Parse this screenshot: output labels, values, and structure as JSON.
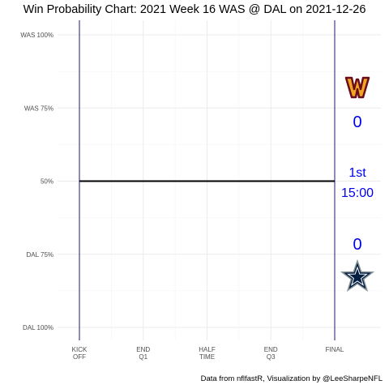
{
  "chart_data": {
    "type": "line",
    "title": "Win Probability Chart: 2021 Week 16 WAS @ DAL on 2021-12-26",
    "xlabel": "",
    "ylabel": "",
    "x_ticks": [
      {
        "pos": 0,
        "label": [
          "KICK",
          "OFF"
        ]
      },
      {
        "pos": 1,
        "label": [
          "END",
          "Q1"
        ]
      },
      {
        "pos": 2,
        "label": [
          "HALF",
          "TIME"
        ]
      },
      {
        "pos": 3,
        "label": [
          "END",
          "Q3"
        ]
      },
      {
        "pos": 4,
        "label": [
          "FINAL"
        ]
      }
    ],
    "xlim": [
      0,
      4
    ],
    "y_ticks": [
      {
        "value": 1.0,
        "label": "WAS 100%"
      },
      {
        "value": 0.75,
        "label": "WAS 75%"
      },
      {
        "value": 0.5,
        "label": "50%"
      },
      {
        "value": 0.25,
        "label": "DAL 75%"
      },
      {
        "value": 0.0,
        "label": "DAL 100%"
      }
    ],
    "ylim": [
      0,
      1
    ],
    "grid": true,
    "vlines": [
      0,
      4
    ],
    "series": [
      {
        "x": [
          0,
          4
        ],
        "y": [
          0.5,
          0.5
        ],
        "color": "#000000"
      }
    ]
  },
  "caption": "Data from nflfastR, Visualization by @LeeSharpeNFL",
  "scoreboard": {
    "home_logo": "W-helmet-icon",
    "home_score": "0",
    "quarter": "1st",
    "clock": "15:00",
    "away_score": "0",
    "away_logo": "star-icon",
    "text_color": "#0000ee",
    "was_color": "#f0a623",
    "was_dark": "#6b0c1b",
    "dal_color": "#041e42"
  }
}
